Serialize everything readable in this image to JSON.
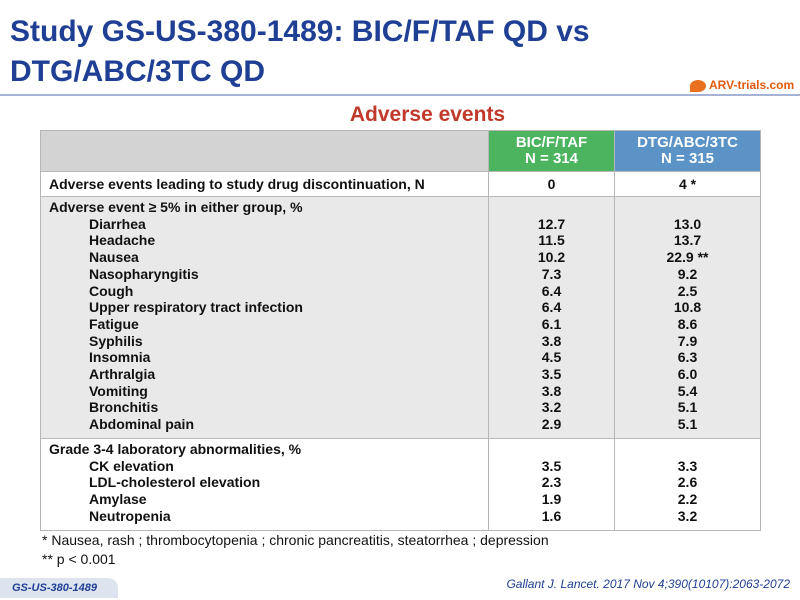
{
  "title": "Study GS-US-380-1489: BIC/F/TAF QD vs DTG/ABC/3TC QD",
  "logo_text": "ARV-trials.com",
  "subtitle": "Adverse events",
  "columns": [
    {
      "name": "BIC/F/TAF",
      "n": "N = 314"
    },
    {
      "name": "DTG/ABC/3TC",
      "n": "N = 315"
    }
  ],
  "discontinuation": {
    "label": "Adverse events leading to study drug discontinuation, N",
    "bic": "0",
    "dtg": "4 *"
  },
  "ae_section": {
    "heading": "Adverse event ≥ 5% in either group, %",
    "items": [
      {
        "label": "Diarrhea",
        "bic": "12.7",
        "dtg": "13.0"
      },
      {
        "label": "Headache",
        "bic": "11.5",
        "dtg": "13.7"
      },
      {
        "label": "Nausea",
        "bic": "10.2",
        "dtg": "22.9 **"
      },
      {
        "label": "Nasopharyngitis",
        "bic": "7.3",
        "dtg": "9.2"
      },
      {
        "label": "Cough",
        "bic": "6.4",
        "dtg": "2.5"
      },
      {
        "label": "Upper respiratory tract infection",
        "bic": "6.4",
        "dtg": "10.8"
      },
      {
        "label": "Fatigue",
        "bic": "6.1",
        "dtg": "8.6"
      },
      {
        "label": "Syphilis",
        "bic": "3.8",
        "dtg": "7.9"
      },
      {
        "label": "Insomnia",
        "bic": "4.5",
        "dtg": "6.3"
      },
      {
        "label": "Arthralgia",
        "bic": "3.5",
        "dtg": "6.0"
      },
      {
        "label": "Vomiting",
        "bic": "3.8",
        "dtg": "5.4"
      },
      {
        "label": "Bronchitis",
        "bic": "3.2",
        "dtg": "5.1"
      },
      {
        "label": "Abdominal pain",
        "bic": "2.9",
        "dtg": "5.1"
      }
    ]
  },
  "lab_section": {
    "heading": "Grade 3-4 laboratory abnormalities, %",
    "items": [
      {
        "label": "CK elevation",
        "bic": "3.5",
        "dtg": "3.3"
      },
      {
        "label": "LDL-cholesterol elevation",
        "bic": "2.3",
        "dtg": "2.6"
      },
      {
        "label": "Amylase",
        "bic": "1.9",
        "dtg": "2.2"
      },
      {
        "label": "Neutropenia",
        "bic": "1.6",
        "dtg": "3.2"
      }
    ]
  },
  "footnotes": [
    "* Nausea, rash ; thrombocytopenia ; chronic pancreatitis, steatorrhea ; depression",
    "** p < 0.001"
  ],
  "badge": "GS-US-380-1489",
  "citation": "Gallant J. Lancet. 2017 Nov 4;390(10107):2063-2072"
}
